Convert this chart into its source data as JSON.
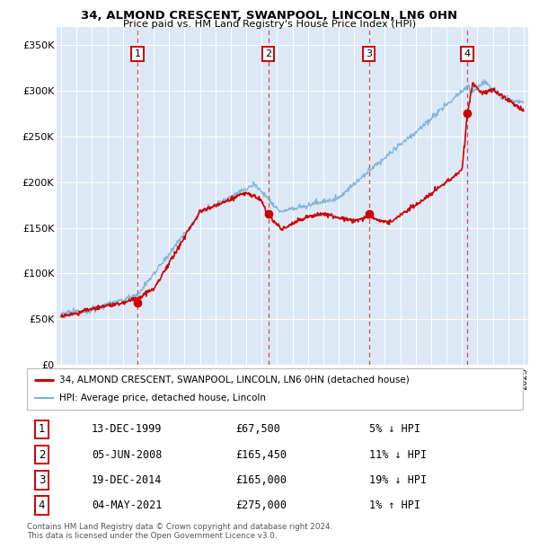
{
  "title_line1": "34, ALMOND CRESCENT, SWANPOOL, LINCOLN, LN6 0HN",
  "title_line2": "Price paid vs. HM Land Registry's House Price Index (HPI)",
  "background_color": "#dce8f5",
  "red_line_color": "#cc0000",
  "blue_line_color": "#7ab0d4",
  "sale_marker_color": "#cc0000",
  "vline_color": "#cc3333",
  "transactions": [
    {
      "num": 1,
      "price": 67500,
      "x_year": 1999.95
    },
    {
      "num": 2,
      "price": 165450,
      "x_year": 2008.43
    },
    {
      "num": 3,
      "price": 165000,
      "x_year": 2014.97
    },
    {
      "num": 4,
      "price": 275000,
      "x_year": 2021.34
    }
  ],
  "table_rows": [
    {
      "num": 1,
      "date": "13-DEC-1999",
      "price": "£67,500",
      "pct": "5%",
      "dir": "↓",
      "vs": "HPI"
    },
    {
      "num": 2,
      "date": "05-JUN-2008",
      "price": "£165,450",
      "pct": "11%",
      "dir": "↓",
      "vs": "HPI"
    },
    {
      "num": 3,
      "date": "19-DEC-2014",
      "price": "£165,000",
      "pct": "19%",
      "dir": "↓",
      "vs": "HPI"
    },
    {
      "num": 4,
      "date": "04-MAY-2021",
      "price": "£275,000",
      "pct": "1%",
      "dir": "↑",
      "vs": "HPI"
    }
  ],
  "legend_label_red": "34, ALMOND CRESCENT, SWANPOOL, LINCOLN, LN6 0HN (detached house)",
  "legend_label_blue": "HPI: Average price, detached house, Lincoln",
  "footnote": "Contains HM Land Registry data © Crown copyright and database right 2024.\nThis data is licensed under the Open Government Licence v3.0.",
  "ylim": [
    0,
    370000
  ],
  "yticks": [
    0,
    50000,
    100000,
    150000,
    200000,
    250000,
    300000,
    350000
  ],
  "ytick_labels": [
    "£0",
    "£50K",
    "£100K",
    "£150K",
    "£200K",
    "£250K",
    "£300K",
    "£350K"
  ],
  "xmin": 1994.7,
  "xmax": 2025.3
}
